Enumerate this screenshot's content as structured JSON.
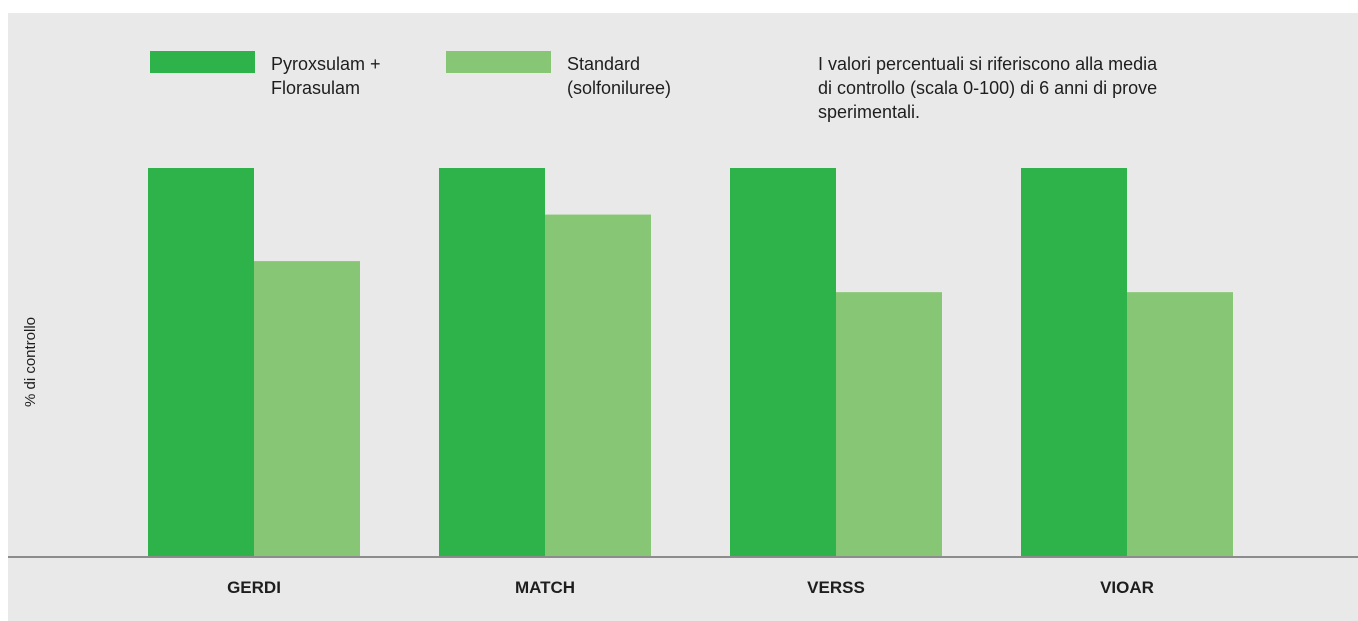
{
  "chart_data": {
    "type": "bar",
    "categories": [
      "GERDI",
      "MATCH",
      "VERSS",
      "VIOAR"
    ],
    "series": [
      {
        "name": "Pyroxsulam + Florasulam",
        "label_lines": [
          "Pyroxsulam +",
          "Florasulam"
        ],
        "color": "#2db34a",
        "values": [
          100,
          100,
          100,
          100
        ]
      },
      {
        "name": "Standard (solfoniluree)",
        "label_lines": [
          "Standard",
          "(solfoniluree)"
        ],
        "color": "#86c674",
        "values": [
          76,
          88,
          68,
          68
        ]
      }
    ],
    "ylabel": "% di controllo",
    "xlabel": "",
    "ylim": [
      0,
      100
    ],
    "grid": false,
    "legend_position": "top-left",
    "note_lines": [
      "I valori percentuali si riferiscono alla media",
      "di controllo (scala 0-100) di 6 anni di prove",
      "sperimentali."
    ],
    "background_color": "#e9e9ea",
    "axis_color": "#8c8c8c"
  }
}
